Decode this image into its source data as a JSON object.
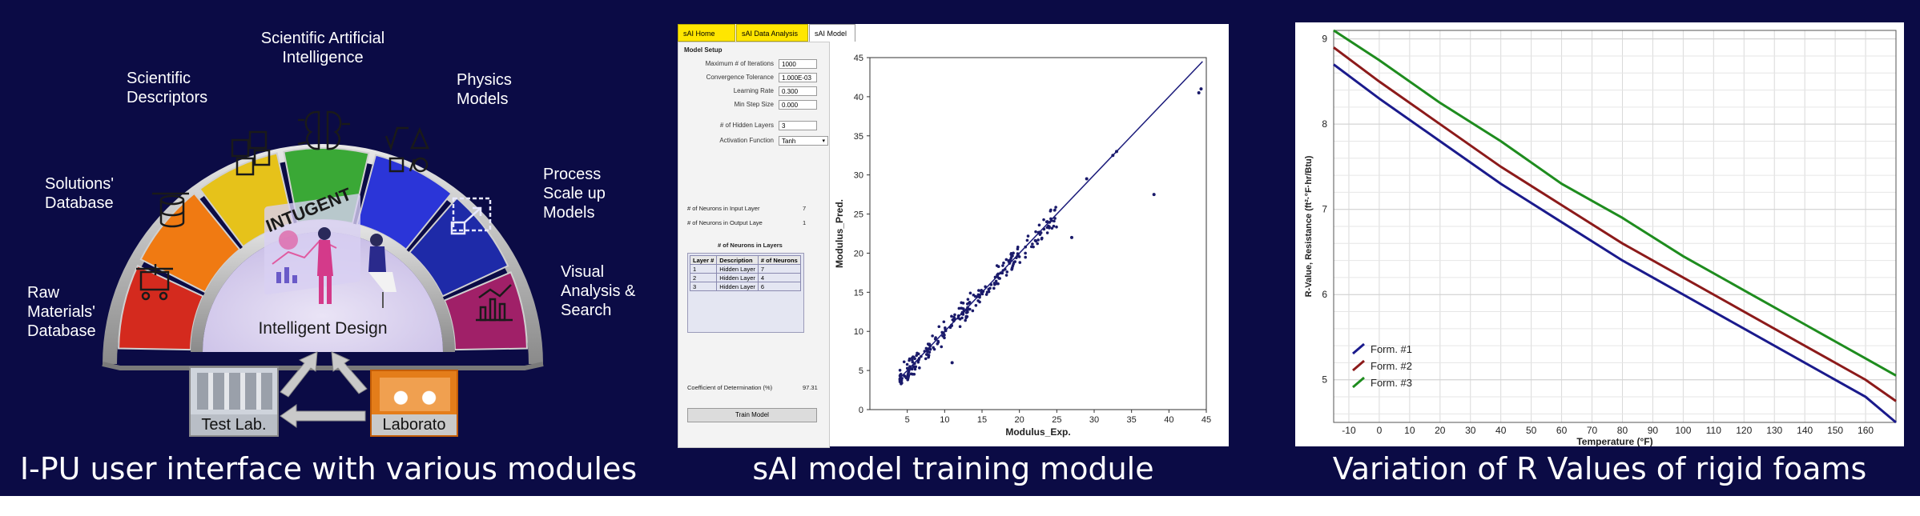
{
  "captions": {
    "left": "I-PU user interface with various modules",
    "middle": "sAI model training module",
    "right": "Variation of R Values of rigid foams"
  },
  "modules": {
    "scientific_ai": "Scientific Artificial\nIntelligence",
    "scientific_descriptors": "Scientific\nDescriptors",
    "physics_models": "Physics\nModels",
    "solutions_database": "Solutions'\nDatabase",
    "process_scaleup": "Process\nScale up\nModels",
    "raw_materials": "Raw\nMaterials'\nDatabase",
    "visual_analysis": "Visual\nAnalysis &\nSearch",
    "center_brand": "INTUGENT",
    "center_label": "Intelligent Design",
    "test_lab": "Test Lab.",
    "laboratory": "Laborato"
  },
  "colors": {
    "background": "#0b0b45",
    "red_segment": "#d42a1e",
    "orange_segment": "#f07a12",
    "yellow_segment": "#e6c21a",
    "green_segment": "#3aa836",
    "blue_segment": "#2b35d8",
    "navy_segment": "#1e2aa8",
    "purple_segment": "#a02068"
  },
  "sai": {
    "tabs": [
      "sAI Home Page",
      "sAI Data Analysis",
      "sAI Model"
    ],
    "model_setup_title": "Model Setup",
    "fields": [
      {
        "label": "Maximum # of Iterations",
        "value": "1000"
      },
      {
        "label": "Convergence Tolerance",
        "value": "1.000E-03"
      },
      {
        "label": "Learning Rate",
        "value": "0.300"
      },
      {
        "label": "Min Step Size",
        "value": "0.000"
      }
    ],
    "hidden_layers_label": "# of Hidden Layers",
    "hidden_layers_value": "3",
    "activation_label": "Activation Function",
    "activation_value": "Tanh",
    "neurons_input_label": "# of Neurons in Input Layer",
    "neurons_input_value": "7",
    "neurons_output_label": "# of Neurons in Output Laye",
    "neurons_output_value": "1",
    "neurons_in_layers_title": "# of Neurons in Layers",
    "layer_headers": [
      "Layer #",
      "Description",
      "# of Neurons"
    ],
    "layer_rows": [
      [
        "1",
        "Hidden Layer",
        "7"
      ],
      [
        "2",
        "Hidden Layer",
        "4"
      ],
      [
        "3",
        "Hidden Layer",
        "6"
      ]
    ],
    "coef_label": "Coefficient of Determination (%)",
    "coef_value": "97.31",
    "train_button": "Train Model"
  },
  "chart_data": [
    {
      "type": "scatter",
      "title": "",
      "xlabel": "Modulus_Exp.",
      "ylabel": "Modulus_Pred.",
      "xlim": [
        0,
        45
      ],
      "ylim": [
        0,
        45
      ],
      "xticks": [
        5,
        10,
        15,
        20,
        25,
        30,
        35,
        40,
        45
      ],
      "yticks": [
        0,
        5,
        10,
        15,
        20,
        25,
        30,
        35,
        40,
        45
      ],
      "fit_line": [
        [
          4,
          4
        ],
        [
          44.5,
          44.5
        ]
      ],
      "outliers": [
        [
          38,
          27.5
        ],
        [
          27,
          22
        ],
        [
          11,
          6
        ],
        [
          44,
          40.5
        ],
        [
          44.3,
          41
        ],
        [
          29,
          29.5
        ],
        [
          32.5,
          32.5
        ],
        [
          33,
          33
        ]
      ],
      "cluster": {
        "x_range": [
          4,
          25
        ],
        "spread": 1.2
      }
    },
    {
      "type": "line",
      "title": "",
      "xlabel": "Temperature (°F)",
      "ylabel": "R-Value, Resistance (ft²·°F·hr/Btu)",
      "xlim": [
        -15,
        170
      ],
      "ylim": [
        4.5,
        9.1
      ],
      "xticks": [
        -10,
        0,
        10,
        20,
        30,
        40,
        50,
        60,
        70,
        80,
        90,
        100,
        110,
        120,
        130,
        140,
        150,
        160
      ],
      "yticks": [
        5,
        6,
        7,
        8,
        9
      ],
      "grid": true,
      "legend_position": "bottom-left",
      "series": [
        {
          "name": "Form. #1",
          "color": "#1a1a8c",
          "x": [
            -15,
            0,
            20,
            40,
            60,
            80,
            100,
            120,
            140,
            160,
            170
          ],
          "values": [
            8.7,
            8.3,
            7.8,
            7.3,
            6.85,
            6.4,
            6.0,
            5.6,
            5.2,
            4.8,
            4.5
          ]
        },
        {
          "name": "Form. #2",
          "color": "#8c1a1a",
          "x": [
            -15,
            0,
            20,
            40,
            60,
            80,
            100,
            120,
            140,
            160,
            170
          ],
          "values": [
            8.9,
            8.5,
            8.0,
            7.5,
            7.05,
            6.6,
            6.2,
            5.8,
            5.4,
            5.0,
            4.75
          ]
        },
        {
          "name": "Form. #3",
          "color": "#1e8c1e",
          "x": [
            -15,
            0,
            20,
            40,
            60,
            80,
            100,
            120,
            140,
            160,
            170
          ],
          "values": [
            9.1,
            8.75,
            8.25,
            7.8,
            7.3,
            6.9,
            6.45,
            6.05,
            5.65,
            5.25,
            5.05
          ]
        }
      ]
    }
  ]
}
